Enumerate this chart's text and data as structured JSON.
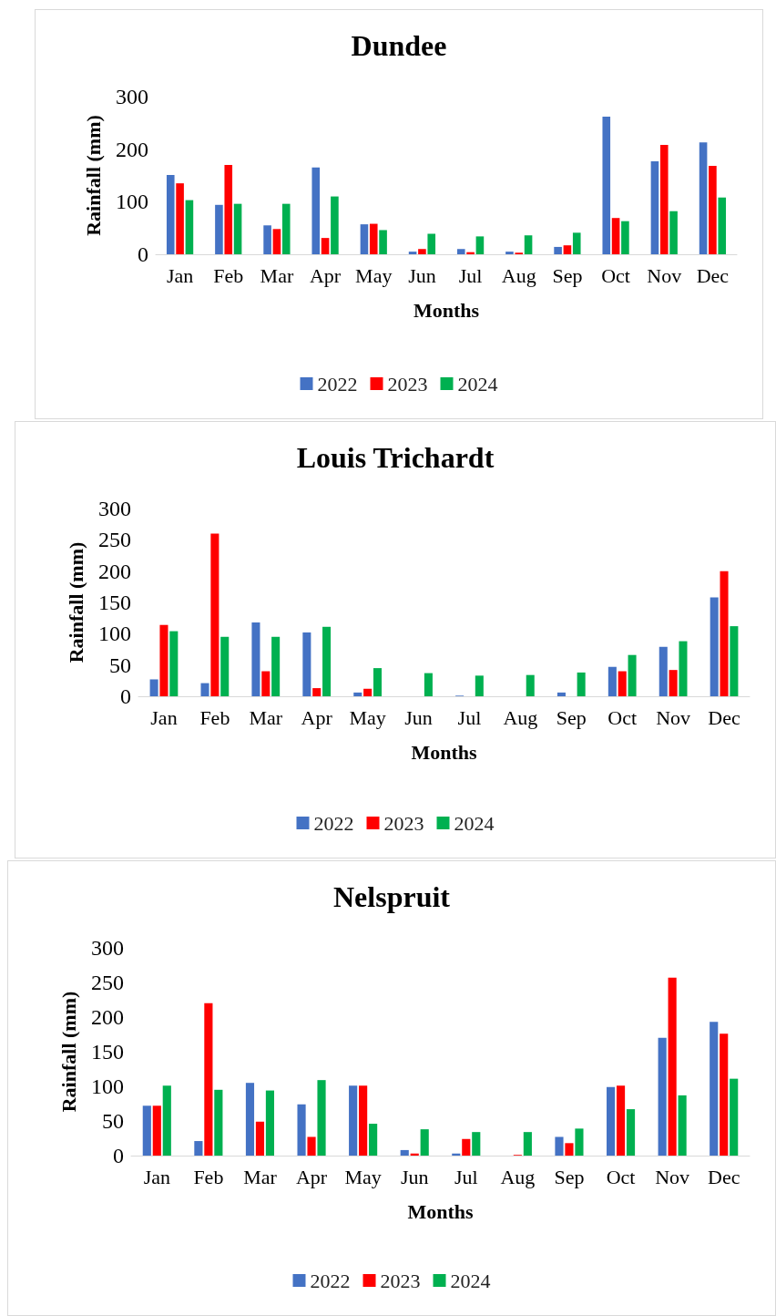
{
  "chart_data": [
    {
      "type": "bar",
      "title": "Dundee",
      "xlabel": "Months",
      "ylabel": "Rainfall (mm)",
      "categories": [
        "Jan",
        "Feb",
        "Mar",
        "Apr",
        "May",
        "Jun",
        "Jul",
        "Aug",
        "Sep",
        "Oct",
        "Nov",
        "Dec"
      ],
      "ylim": [
        0,
        300
      ],
      "yticks": [
        0,
        100,
        200,
        300
      ],
      "grid": false,
      "legend": "bottom",
      "series": [
        {
          "name": "2022",
          "color": "#4472c4",
          "values": [
            151,
            94,
            55,
            165,
            57,
            5,
            10,
            5,
            14,
            262,
            177,
            213
          ]
        },
        {
          "name": "2023",
          "color": "#ff0000",
          "values": [
            135,
            170,
            48,
            31,
            58,
            10,
            4,
            3,
            17,
            69,
            208,
            168
          ]
        },
        {
          "name": "2024",
          "color": "#00b050",
          "values": [
            103,
            96,
            96,
            110,
            46,
            39,
            34,
            36,
            41,
            63,
            82,
            108
          ]
        }
      ]
    },
    {
      "type": "bar",
      "title": "Louis Trichardt",
      "xlabel": "Months",
      "ylabel": "Rainfall (mm)",
      "categories": [
        "Jan",
        "Feb",
        "Mar",
        "Apr",
        "May",
        "Jun",
        "Jul",
        "Aug",
        "Sep",
        "Oct",
        "Nov",
        "Dec"
      ],
      "ylim": [
        0,
        300
      ],
      "yticks": [
        0,
        50,
        100,
        150,
        200,
        250,
        300
      ],
      "grid": false,
      "legend": "bottom",
      "series": [
        {
          "name": "2022",
          "color": "#4472c4",
          "values": [
            27,
            21,
            118,
            102,
            6,
            0,
            1,
            0,
            6,
            47,
            79,
            158
          ]
        },
        {
          "name": "2023",
          "color": "#ff0000",
          "values": [
            114,
            260,
            40,
            13,
            12,
            0,
            0,
            0,
            0,
            40,
            42,
            200
          ]
        },
        {
          "name": "2024",
          "color": "#00b050",
          "values": [
            104,
            95,
            95,
            111,
            45,
            37,
            33,
            34,
            38,
            66,
            88,
            112
          ]
        }
      ]
    },
    {
      "type": "bar",
      "title": "Nelspruit",
      "xlabel": "Months",
      "ylabel": "Rainfall (mm)",
      "categories": [
        "Jan",
        "Feb",
        "Mar",
        "Apr",
        "May",
        "Jun",
        "Jul",
        "Aug",
        "Sep",
        "Oct",
        "Nov",
        "Dec"
      ],
      "ylim": [
        0,
        300
      ],
      "yticks": [
        0,
        50,
        100,
        150,
        200,
        250,
        300
      ],
      "grid": false,
      "legend": "bottom",
      "series": [
        {
          "name": "2022",
          "color": "#4472c4",
          "values": [
            72,
            21,
            105,
            74,
            101,
            8,
            3,
            0,
            27,
            99,
            170,
            193
          ]
        },
        {
          "name": "2023",
          "color": "#ff0000",
          "values": [
            72,
            220,
            49,
            27,
            101,
            3,
            24,
            1,
            18,
            101,
            257,
            176
          ]
        },
        {
          "name": "2024",
          "color": "#00b050",
          "values": [
            101,
            95,
            94,
            109,
            46,
            38,
            34,
            34,
            39,
            67,
            87,
            111
          ]
        }
      ]
    }
  ]
}
